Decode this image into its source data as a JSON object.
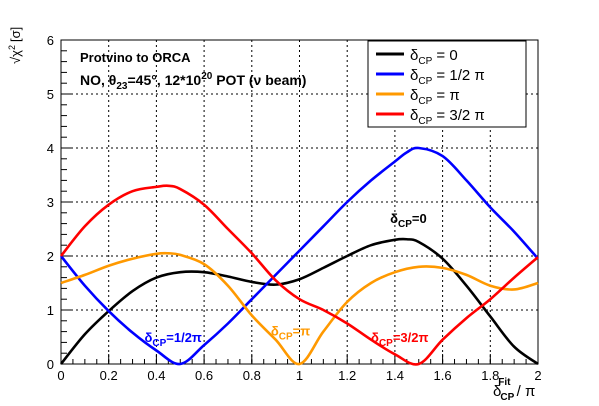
{
  "chart_data": {
    "type": "line",
    "ylabel_main": "√χ",
    "ylabel_sup": "2",
    "ylabel_unit": "[σ]",
    "xlabel_delta": "δ",
    "xlabel_sub": "CP",
    "xlabel_sup": "Fit",
    "xlabel_rest": " / π",
    "xlim": [
      0,
      2
    ],
    "ylim": [
      0,
      6
    ],
    "grid": true,
    "x_ticks": [
      0,
      0.2,
      0.4,
      0.6,
      0.8,
      1,
      1.2,
      1.4,
      1.6,
      1.8,
      2
    ],
    "x_tick_labels": [
      "0",
      "0.2",
      "0.4",
      "0.6",
      "0.8",
      "1",
      "1.2",
      "1.4",
      "1.6",
      "1.8",
      "2"
    ],
    "y_ticks": [
      0,
      1,
      2,
      3,
      4,
      5,
      6
    ],
    "y_tick_labels": [
      "0",
      "1",
      "2",
      "3",
      "4",
      "5",
      "6"
    ],
    "title_line1": "Protvino to ORCA",
    "title_line2": {
      "a": "NO, θ",
      "a_sub": "23",
      "b": "=45°, 12*10",
      "b_sup": "20",
      "c": " POT (ν beam)"
    },
    "legend_placement": "top-right",
    "series": [
      {
        "name": "δ_CP = 0",
        "legend": {
          "sym": "δ",
          "sub": "CP",
          "rest": " = 0"
        },
        "color": "#000000",
        "x": [
          0,
          0.1,
          0.2,
          0.3,
          0.4,
          0.5,
          0.6,
          0.7,
          0.8,
          0.9,
          1.0,
          1.1,
          1.2,
          1.3,
          1.4,
          1.45,
          1.5,
          1.6,
          1.7,
          1.8,
          1.9,
          2.0
        ],
        "y": [
          0,
          0.55,
          0.98,
          1.35,
          1.6,
          1.7,
          1.7,
          1.62,
          1.52,
          1.47,
          1.57,
          1.78,
          2.0,
          2.2,
          2.3,
          2.31,
          2.26,
          1.95,
          1.45,
          0.88,
          0.32,
          0
        ]
      },
      {
        "name": "δ_CP = 1/2 π",
        "legend": {
          "sym": "δ",
          "sub": "CP",
          "rest": " = 1/2 π"
        },
        "color": "#0000ff",
        "x": [
          0,
          0.1,
          0.2,
          0.3,
          0.4,
          0.5,
          0.6,
          0.7,
          0.8,
          0.9,
          1.0,
          1.1,
          1.2,
          1.3,
          1.4,
          1.45,
          1.5,
          1.6,
          1.7,
          1.8,
          1.9,
          2.0
        ],
        "y": [
          2.0,
          1.45,
          0.98,
          0.58,
          0.25,
          0,
          0.35,
          0.75,
          1.2,
          1.65,
          2.1,
          2.55,
          3.0,
          3.4,
          3.75,
          3.92,
          4.0,
          3.85,
          3.4,
          2.9,
          2.45,
          1.95
        ]
      },
      {
        "name": "δ_CP = π",
        "legend": {
          "sym": "δ",
          "sub": "CP",
          "rest": " = π"
        },
        "color": "#ff9900",
        "x": [
          0,
          0.1,
          0.2,
          0.3,
          0.4,
          0.45,
          0.5,
          0.6,
          0.7,
          0.8,
          0.9,
          1.0,
          1.1,
          1.2,
          1.3,
          1.4,
          1.5,
          1.6,
          1.7,
          1.8,
          1.9,
          2.0
        ],
        "y": [
          1.5,
          1.65,
          1.82,
          1.95,
          2.04,
          2.05,
          2.02,
          1.85,
          1.45,
          0.9,
          0.45,
          0,
          0.6,
          1.15,
          1.5,
          1.7,
          1.8,
          1.78,
          1.65,
          1.45,
          1.38,
          1.5
        ]
      },
      {
        "name": "δ_CP = 3/2 π",
        "legend": {
          "sym": "δ",
          "sub": "CP",
          "rest": " = 3/2 π"
        },
        "color": "#ff0000",
        "x": [
          0,
          0.1,
          0.2,
          0.3,
          0.4,
          0.45,
          0.5,
          0.6,
          0.7,
          0.8,
          0.9,
          1.0,
          1.1,
          1.2,
          1.3,
          1.4,
          1.5,
          1.6,
          1.7,
          1.8,
          1.9,
          2.0
        ],
        "y": [
          2.0,
          2.55,
          2.95,
          3.2,
          3.28,
          3.3,
          3.24,
          2.95,
          2.5,
          2.05,
          1.55,
          1.2,
          1.0,
          0.75,
          0.45,
          0.18,
          0,
          0.45,
          0.85,
          1.2,
          1.6,
          1.98
        ]
      }
    ],
    "annotations": [
      {
        "sym": "δ",
        "sub": "CP",
        "rest": "=0",
        "color": "#000000",
        "x": 1.38,
        "y": 2.7
      },
      {
        "sym": "δ",
        "sub": "CP",
        "rest": "=1/2π",
        "color": "#0000ff",
        "x": 0.35,
        "y": 0.5
      },
      {
        "sym": "δ",
        "sub": "CP",
        "rest": "=π",
        "color": "#ff9900",
        "x": 0.88,
        "y": 0.62
      },
      {
        "sym": "δ",
        "sub": "CP",
        "rest": "=3/2π",
        "color": "#ff0000",
        "x": 1.3,
        "y": 0.5
      }
    ]
  }
}
